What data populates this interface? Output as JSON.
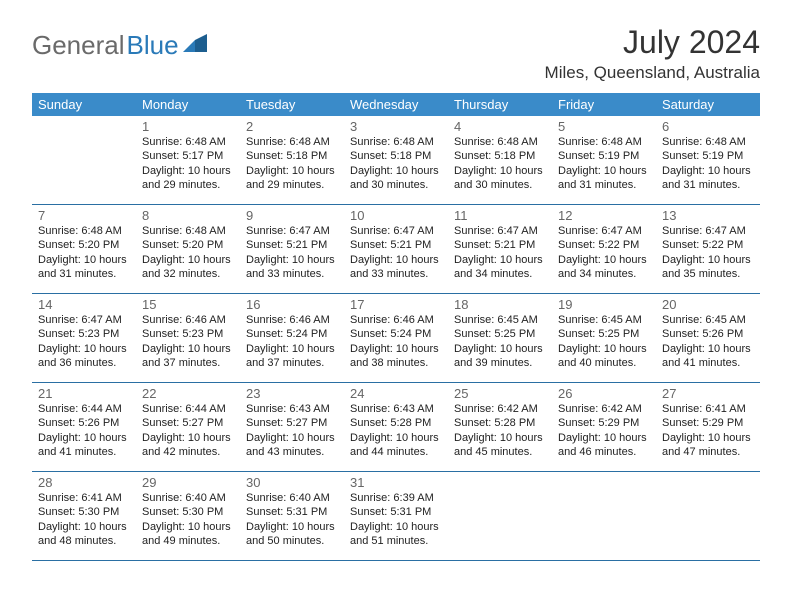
{
  "logo": {
    "part1": "General",
    "part2": "Blue"
  },
  "title": "July 2024",
  "location": "Miles, Queensland, Australia",
  "colors": {
    "header_bg": "#3a8bc9",
    "header_text": "#ffffff",
    "row_border": "#2a6fa3",
    "daynum": "#666666",
    "body_text": "#222222",
    "logo_gray": "#6a6a6a",
    "logo_blue": "#2a7ab8"
  },
  "daynames": [
    "Sunday",
    "Monday",
    "Tuesday",
    "Wednesday",
    "Thursday",
    "Friday",
    "Saturday"
  ],
  "weeks": [
    [
      null,
      {
        "n": "1",
        "sunrise": "Sunrise: 6:48 AM",
        "sunset": "Sunset: 5:17 PM",
        "daylight": "Daylight: 10 hours and 29 minutes."
      },
      {
        "n": "2",
        "sunrise": "Sunrise: 6:48 AM",
        "sunset": "Sunset: 5:18 PM",
        "daylight": "Daylight: 10 hours and 29 minutes."
      },
      {
        "n": "3",
        "sunrise": "Sunrise: 6:48 AM",
        "sunset": "Sunset: 5:18 PM",
        "daylight": "Daylight: 10 hours and 30 minutes."
      },
      {
        "n": "4",
        "sunrise": "Sunrise: 6:48 AM",
        "sunset": "Sunset: 5:18 PM",
        "daylight": "Daylight: 10 hours and 30 minutes."
      },
      {
        "n": "5",
        "sunrise": "Sunrise: 6:48 AM",
        "sunset": "Sunset: 5:19 PM",
        "daylight": "Daylight: 10 hours and 31 minutes."
      },
      {
        "n": "6",
        "sunrise": "Sunrise: 6:48 AM",
        "sunset": "Sunset: 5:19 PM",
        "daylight": "Daylight: 10 hours and 31 minutes."
      }
    ],
    [
      {
        "n": "7",
        "sunrise": "Sunrise: 6:48 AM",
        "sunset": "Sunset: 5:20 PM",
        "daylight": "Daylight: 10 hours and 31 minutes."
      },
      {
        "n": "8",
        "sunrise": "Sunrise: 6:48 AM",
        "sunset": "Sunset: 5:20 PM",
        "daylight": "Daylight: 10 hours and 32 minutes."
      },
      {
        "n": "9",
        "sunrise": "Sunrise: 6:47 AM",
        "sunset": "Sunset: 5:21 PM",
        "daylight": "Daylight: 10 hours and 33 minutes."
      },
      {
        "n": "10",
        "sunrise": "Sunrise: 6:47 AM",
        "sunset": "Sunset: 5:21 PM",
        "daylight": "Daylight: 10 hours and 33 minutes."
      },
      {
        "n": "11",
        "sunrise": "Sunrise: 6:47 AM",
        "sunset": "Sunset: 5:21 PM",
        "daylight": "Daylight: 10 hours and 34 minutes."
      },
      {
        "n": "12",
        "sunrise": "Sunrise: 6:47 AM",
        "sunset": "Sunset: 5:22 PM",
        "daylight": "Daylight: 10 hours and 34 minutes."
      },
      {
        "n": "13",
        "sunrise": "Sunrise: 6:47 AM",
        "sunset": "Sunset: 5:22 PM",
        "daylight": "Daylight: 10 hours and 35 minutes."
      }
    ],
    [
      {
        "n": "14",
        "sunrise": "Sunrise: 6:47 AM",
        "sunset": "Sunset: 5:23 PM",
        "daylight": "Daylight: 10 hours and 36 minutes."
      },
      {
        "n": "15",
        "sunrise": "Sunrise: 6:46 AM",
        "sunset": "Sunset: 5:23 PM",
        "daylight": "Daylight: 10 hours and 37 minutes."
      },
      {
        "n": "16",
        "sunrise": "Sunrise: 6:46 AM",
        "sunset": "Sunset: 5:24 PM",
        "daylight": "Daylight: 10 hours and 37 minutes."
      },
      {
        "n": "17",
        "sunrise": "Sunrise: 6:46 AM",
        "sunset": "Sunset: 5:24 PM",
        "daylight": "Daylight: 10 hours and 38 minutes."
      },
      {
        "n": "18",
        "sunrise": "Sunrise: 6:45 AM",
        "sunset": "Sunset: 5:25 PM",
        "daylight": "Daylight: 10 hours and 39 minutes."
      },
      {
        "n": "19",
        "sunrise": "Sunrise: 6:45 AM",
        "sunset": "Sunset: 5:25 PM",
        "daylight": "Daylight: 10 hours and 40 minutes."
      },
      {
        "n": "20",
        "sunrise": "Sunrise: 6:45 AM",
        "sunset": "Sunset: 5:26 PM",
        "daylight": "Daylight: 10 hours and 41 minutes."
      }
    ],
    [
      {
        "n": "21",
        "sunrise": "Sunrise: 6:44 AM",
        "sunset": "Sunset: 5:26 PM",
        "daylight": "Daylight: 10 hours and 41 minutes."
      },
      {
        "n": "22",
        "sunrise": "Sunrise: 6:44 AM",
        "sunset": "Sunset: 5:27 PM",
        "daylight": "Daylight: 10 hours and 42 minutes."
      },
      {
        "n": "23",
        "sunrise": "Sunrise: 6:43 AM",
        "sunset": "Sunset: 5:27 PM",
        "daylight": "Daylight: 10 hours and 43 minutes."
      },
      {
        "n": "24",
        "sunrise": "Sunrise: 6:43 AM",
        "sunset": "Sunset: 5:28 PM",
        "daylight": "Daylight: 10 hours and 44 minutes."
      },
      {
        "n": "25",
        "sunrise": "Sunrise: 6:42 AM",
        "sunset": "Sunset: 5:28 PM",
        "daylight": "Daylight: 10 hours and 45 minutes."
      },
      {
        "n": "26",
        "sunrise": "Sunrise: 6:42 AM",
        "sunset": "Sunset: 5:29 PM",
        "daylight": "Daylight: 10 hours and 46 minutes."
      },
      {
        "n": "27",
        "sunrise": "Sunrise: 6:41 AM",
        "sunset": "Sunset: 5:29 PM",
        "daylight": "Daylight: 10 hours and 47 minutes."
      }
    ],
    [
      {
        "n": "28",
        "sunrise": "Sunrise: 6:41 AM",
        "sunset": "Sunset: 5:30 PM",
        "daylight": "Daylight: 10 hours and 48 minutes."
      },
      {
        "n": "29",
        "sunrise": "Sunrise: 6:40 AM",
        "sunset": "Sunset: 5:30 PM",
        "daylight": "Daylight: 10 hours and 49 minutes."
      },
      {
        "n": "30",
        "sunrise": "Sunrise: 6:40 AM",
        "sunset": "Sunset: 5:31 PM",
        "daylight": "Daylight: 10 hours and 50 minutes."
      },
      {
        "n": "31",
        "sunrise": "Sunrise: 6:39 AM",
        "sunset": "Sunset: 5:31 PM",
        "daylight": "Daylight: 10 hours and 51 minutes."
      },
      null,
      null,
      null
    ]
  ]
}
